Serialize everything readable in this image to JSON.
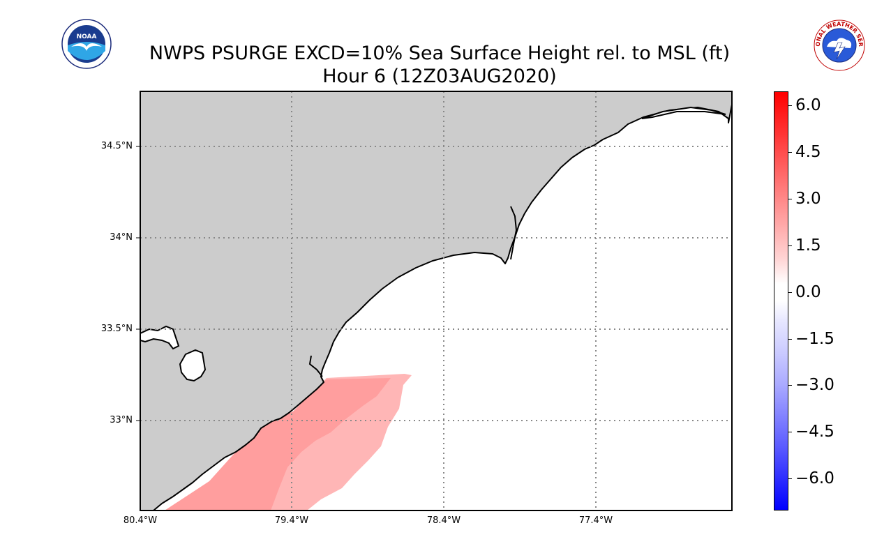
{
  "title": {
    "line1": "NWPS PSURGE EXCD=10% Sea Surface Height rel. to MSL (ft)",
    "line2": "Hour 6 (12Z03AUG2020)"
  },
  "logos": {
    "left": {
      "name": "noaa-logo",
      "text": "NOAA"
    },
    "right": {
      "name": "nws-logo",
      "text": "NATIONAL WEATHER SERVICE"
    }
  },
  "map": {
    "lat_labels": [
      "34.5°N",
      "34°N",
      "33.5°N",
      "33°N"
    ],
    "lon_labels": [
      "80.4°W",
      "79.4°W",
      "78.4°W",
      "77.4°W"
    ],
    "land_color": "#cccccc",
    "sea_color": "#ffffff"
  },
  "colorbar": {
    "labels": [
      "6.0",
      "4.5",
      "3.0",
      "1.5",
      "0.0",
      "−1.5",
      "−3.0",
      "−4.5",
      "−6.0"
    ],
    "range": [
      -7,
      6.5
    ],
    "high_color": "#ff0000",
    "low_color": "#0000ff"
  }
}
